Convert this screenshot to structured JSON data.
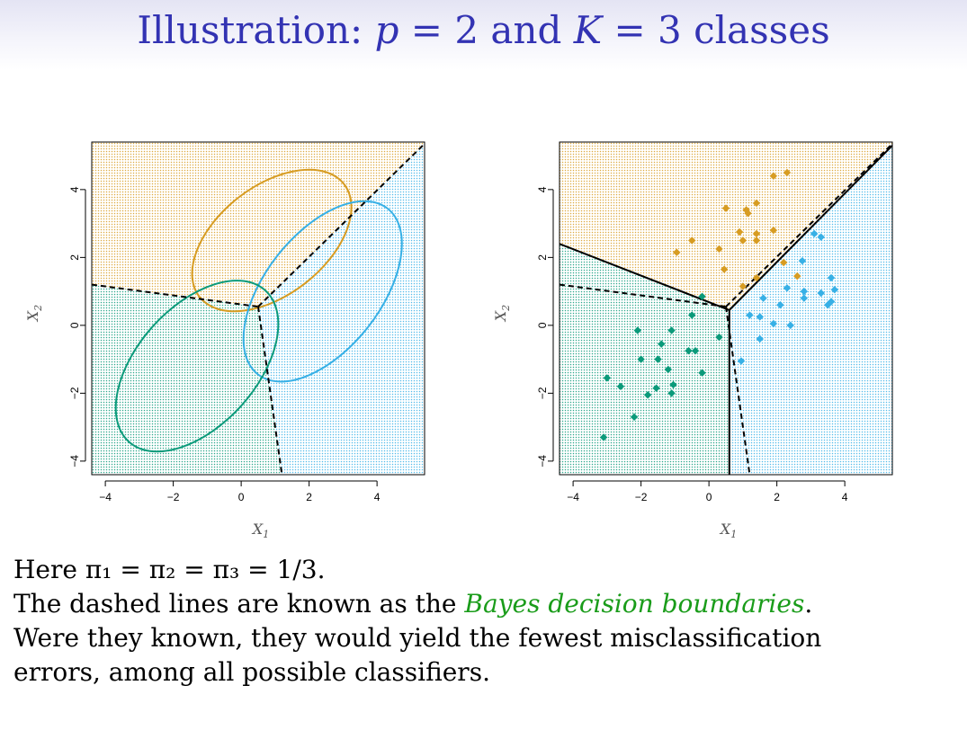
{
  "title": {
    "prefix": "Illustration: ",
    "p_var": "p",
    "p_eq": " = 2 and ",
    "k_var": "K",
    "k_eq": " = 3 classes"
  },
  "body": {
    "line1": "Here π₁ = π₂ = π₃ = 1/3.",
    "line2_prefix": "The dashed lines are known as the ",
    "line2_highlight": "Bayes decision boundaries",
    "line2_suffix": ".",
    "line3": "Were they known, they would yield the fewest misclassification",
    "line4": "errors, among all possible classifiers."
  },
  "colors": {
    "orange": "#d79c22",
    "blue": "#37b0e6",
    "green": "#0b9a7a",
    "title": "#3333b3",
    "highlight": "#1a9c1a"
  },
  "chart_data": [
    {
      "type": "scatter",
      "title": "",
      "xlabel": "X1",
      "ylabel": "X2",
      "xlim": [
        -4.4,
        5.4
      ],
      "ylim": [
        -4.4,
        5.4
      ],
      "xticks": [
        "-4",
        "-2",
        "0",
        "2",
        "4"
      ],
      "yticks": [
        "-4",
        "-2",
        "0",
        "2",
        "4"
      ],
      "background": "decision regions shaded by class color (dotted)",
      "ellipses": [
        {
          "class": "orange",
          "center": [
            0.9,
            2.5
          ],
          "description": "95% contour ellipse"
        },
        {
          "class": "blue",
          "center": [
            2.4,
            1.0
          ],
          "description": "95% contour ellipse"
        },
        {
          "class": "green",
          "center": [
            -1.3,
            -1.2
          ],
          "description": "95% contour ellipse"
        }
      ],
      "bayes_boundary_dashed": [
        [
          [
            -4.4,
            1.2
          ],
          [
            0.5,
            0.55
          ]
        ],
        [
          [
            0.5,
            0.55
          ],
          [
            5.4,
            5.35
          ]
        ],
        [
          [
            0.5,
            0.55
          ],
          [
            1.2,
            -4.4
          ]
        ]
      ]
    },
    {
      "type": "scatter",
      "title": "",
      "xlabel": "X1",
      "ylabel": "X2",
      "xlim": [
        -4.4,
        5.4
      ],
      "ylim": [
        -4.4,
        5.4
      ],
      "xticks": [
        "-4",
        "-2",
        "0",
        "2",
        "4"
      ],
      "yticks": [
        "-4",
        "-2",
        "0",
        "2",
        "4"
      ],
      "background": "estimated decision regions shaded by class color (dotted)",
      "bayes_boundary_dashed": [
        [
          [
            -4.4,
            1.2
          ],
          [
            0.5,
            0.55
          ]
        ],
        [
          [
            0.5,
            0.55
          ],
          [
            5.4,
            5.35
          ]
        ],
        [
          [
            0.5,
            0.55
          ],
          [
            1.2,
            -4.4
          ]
        ]
      ],
      "estimated_boundary_solid": [
        [
          [
            -4.4,
            2.4
          ],
          [
            0.6,
            0.45
          ]
        ],
        [
          [
            0.6,
            0.45
          ],
          [
            5.4,
            5.3
          ]
        ],
        [
          [
            0.6,
            0.45
          ],
          [
            0.6,
            -4.4
          ]
        ]
      ],
      "series": [
        {
          "class": "orange",
          "points": [
            [
              2.3,
              4.5
            ],
            [
              1.9,
              4.4
            ],
            [
              1.4,
              3.6
            ],
            [
              0.5,
              3.45
            ],
            [
              1.1,
              3.4
            ],
            [
              1.15,
              3.3
            ],
            [
              -0.5,
              2.5
            ],
            [
              -0.95,
              2.15
            ],
            [
              0.3,
              2.25
            ],
            [
              0.9,
              2.75
            ],
            [
              1.4,
              2.7
            ],
            [
              1.9,
              2.8
            ],
            [
              1.0,
              2.5
            ],
            [
              1.4,
              2.5
            ],
            [
              0.45,
              1.65
            ],
            [
              2.2,
              1.85
            ],
            [
              2.6,
              1.45
            ],
            [
              1.4,
              1.4
            ],
            [
              1.0,
              1.15
            ]
          ]
        },
        {
          "class": "blue",
          "points": [
            [
              3.1,
              2.7
            ],
            [
              3.3,
              2.6
            ],
            [
              2.75,
              1.9
            ],
            [
              3.6,
              1.4
            ],
            [
              3.7,
              1.05
            ],
            [
              3.3,
              0.95
            ],
            [
              2.3,
              1.1
            ],
            [
              2.8,
              1.0
            ],
            [
              1.6,
              0.8
            ],
            [
              2.8,
              0.8
            ],
            [
              3.6,
              0.7
            ],
            [
              3.5,
              0.6
            ],
            [
              2.1,
              0.6
            ],
            [
              1.2,
              0.3
            ],
            [
              1.5,
              0.25
            ],
            [
              1.9,
              0.05
            ],
            [
              2.4,
              0.0
            ],
            [
              1.5,
              -0.4
            ],
            [
              0.95,
              -1.05
            ]
          ]
        },
        {
          "class": "green",
          "points": [
            [
              -0.5,
              0.3
            ],
            [
              -0.2,
              0.85
            ],
            [
              -2.1,
              -0.15
            ],
            [
              -1.1,
              -0.15
            ],
            [
              0.3,
              -0.35
            ],
            [
              -1.4,
              -0.55
            ],
            [
              -0.6,
              -0.75
            ],
            [
              -0.4,
              -0.75
            ],
            [
              -2.0,
              -1.0
            ],
            [
              -1.5,
              -1.0
            ],
            [
              -1.2,
              -1.3
            ],
            [
              -0.2,
              -1.4
            ],
            [
              -3.0,
              -1.55
            ],
            [
              -2.6,
              -1.8
            ],
            [
              -1.05,
              -1.75
            ],
            [
              -1.55,
              -1.85
            ],
            [
              -1.8,
              -2.05
            ],
            [
              -1.1,
              -2.0
            ],
            [
              -2.2,
              -2.7
            ],
            [
              -3.1,
              -3.3
            ]
          ]
        }
      ]
    }
  ]
}
